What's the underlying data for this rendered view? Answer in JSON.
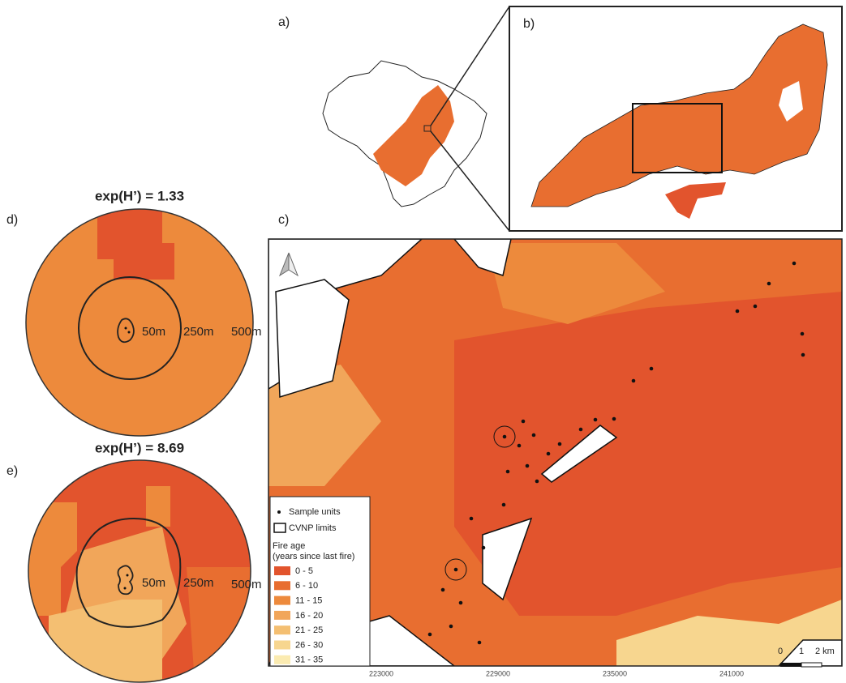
{
  "panels": {
    "a": "a)",
    "b": "b)",
    "c": "c)",
    "d": "d)",
    "e": "e)"
  },
  "panel_d": {
    "title": "exp(H’) = 1.33",
    "rings": [
      "50m",
      "250m",
      "500m"
    ]
  },
  "panel_e": {
    "title": "exp(H’) = 8.69",
    "rings": [
      "50m",
      "250m",
      "500m"
    ]
  },
  "legend": {
    "sample_units": "Sample units",
    "limits": "CVNP limits",
    "title": "Fire age",
    "subtitle": "(years since last fire)",
    "classes": [
      {
        "label": "0 - 5",
        "color": "#e2542d"
      },
      {
        "label": "6 - 10",
        "color": "#e86e30"
      },
      {
        "label": "11 - 15",
        "color": "#ed8a3c"
      },
      {
        "label": "16 - 20",
        "color": "#f1a65a"
      },
      {
        "label": "21 - 25",
        "color": "#f4bf72"
      },
      {
        "label": "26 - 30",
        "color": "#f7d68f"
      },
      {
        "label": "31 - 35",
        "color": "#fbebb1"
      }
    ]
  },
  "x_coordinates": [
    223000,
    229000,
    235000,
    241000
  ],
  "scale_bar": [
    "0",
    "1",
    "2 km"
  ]
}
